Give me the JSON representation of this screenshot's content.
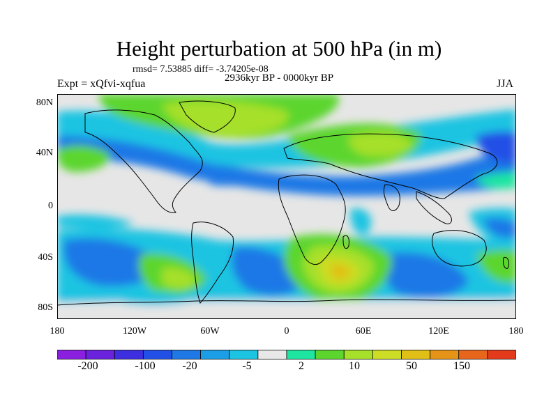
{
  "title": "Height perturbation at 500 hPa (in m)",
  "stats_text": "rmsd= 7.53885 diff= -3.74205e-08",
  "period": "2936kyr BP - 0000kyr BP",
  "experiment": "Expt = xQfvi-xqfua",
  "season": "JJA",
  "map": {
    "projection": "cylindrical-equidistant",
    "lat_labels": [
      "80N",
      "40N",
      "0",
      "40S",
      "80S"
    ],
    "lon_labels": [
      "180",
      "120W",
      "60W",
      "0",
      "60E",
      "120E",
      "180"
    ],
    "coastlines": true,
    "background_color": "#e6e6e6"
  },
  "colorbar": {
    "colors": [
      "#8a1fe0",
      "#6a22dc",
      "#3d2ee0",
      "#2250e6",
      "#1f78e6",
      "#1c9ee6",
      "#1cc4e2",
      "#e8e8e8",
      "#1ee6a0",
      "#5cd62e",
      "#a6e02a",
      "#cddc24",
      "#e0bf16",
      "#e69418",
      "#e8661c",
      "#e23a1a"
    ],
    "labels": [
      "-200",
      "-100",
      "-20",
      "-5",
      "2",
      "10",
      "50",
      "150"
    ]
  }
}
